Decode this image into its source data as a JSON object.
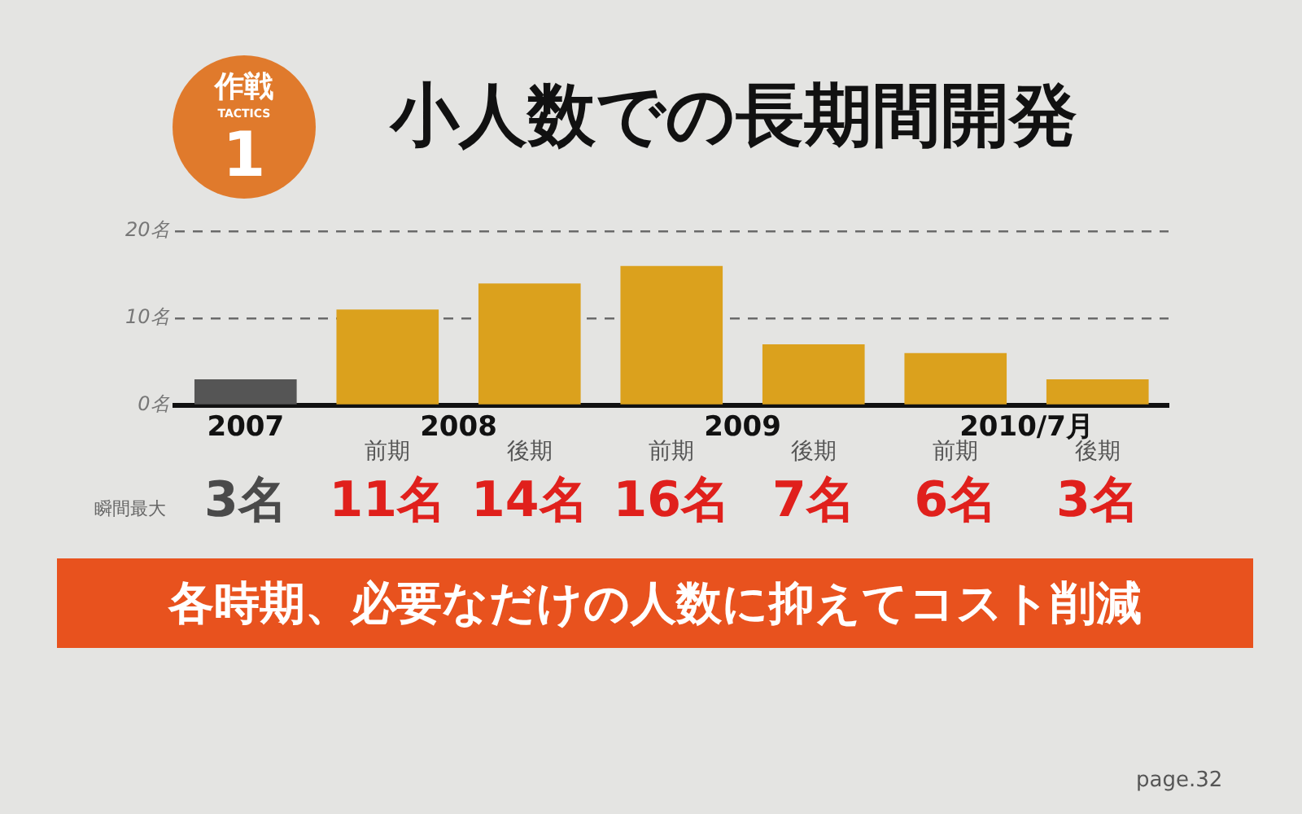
{
  "chart_data": {
    "type": "bar",
    "title": "小人数での長期間開発",
    "categories": [
      "2007",
      "前期",
      "後期",
      "前期",
      "後期",
      "前期",
      "後期"
    ],
    "values": [
      3,
      11,
      14,
      16,
      7,
      6,
      3
    ],
    "colors": [
      "#555555",
      "#dba11d",
      "#dba11d",
      "#dba11d",
      "#dba11d",
      "#dba11d",
      "#dba11d"
    ],
    "value_labels": [
      "3名",
      "11名",
      "14名",
      "16名",
      "7名",
      "6名",
      "3名"
    ],
    "ylim": [
      0,
      20
    ],
    "yticks": [
      {
        "value": 0,
        "label": "0名"
      },
      {
        "value": 10,
        "label": "10名"
      },
      {
        "value": 20,
        "label": "20名"
      }
    ],
    "grid": "y",
    "annotations": [
      "作戦",
      "TACTICS",
      "1",
      "2008",
      "2009",
      "2010/7月",
      "瞬間最大",
      "各時期、必要なだけの人数に抑えてコスト削減",
      "page.32"
    ]
  }
}
